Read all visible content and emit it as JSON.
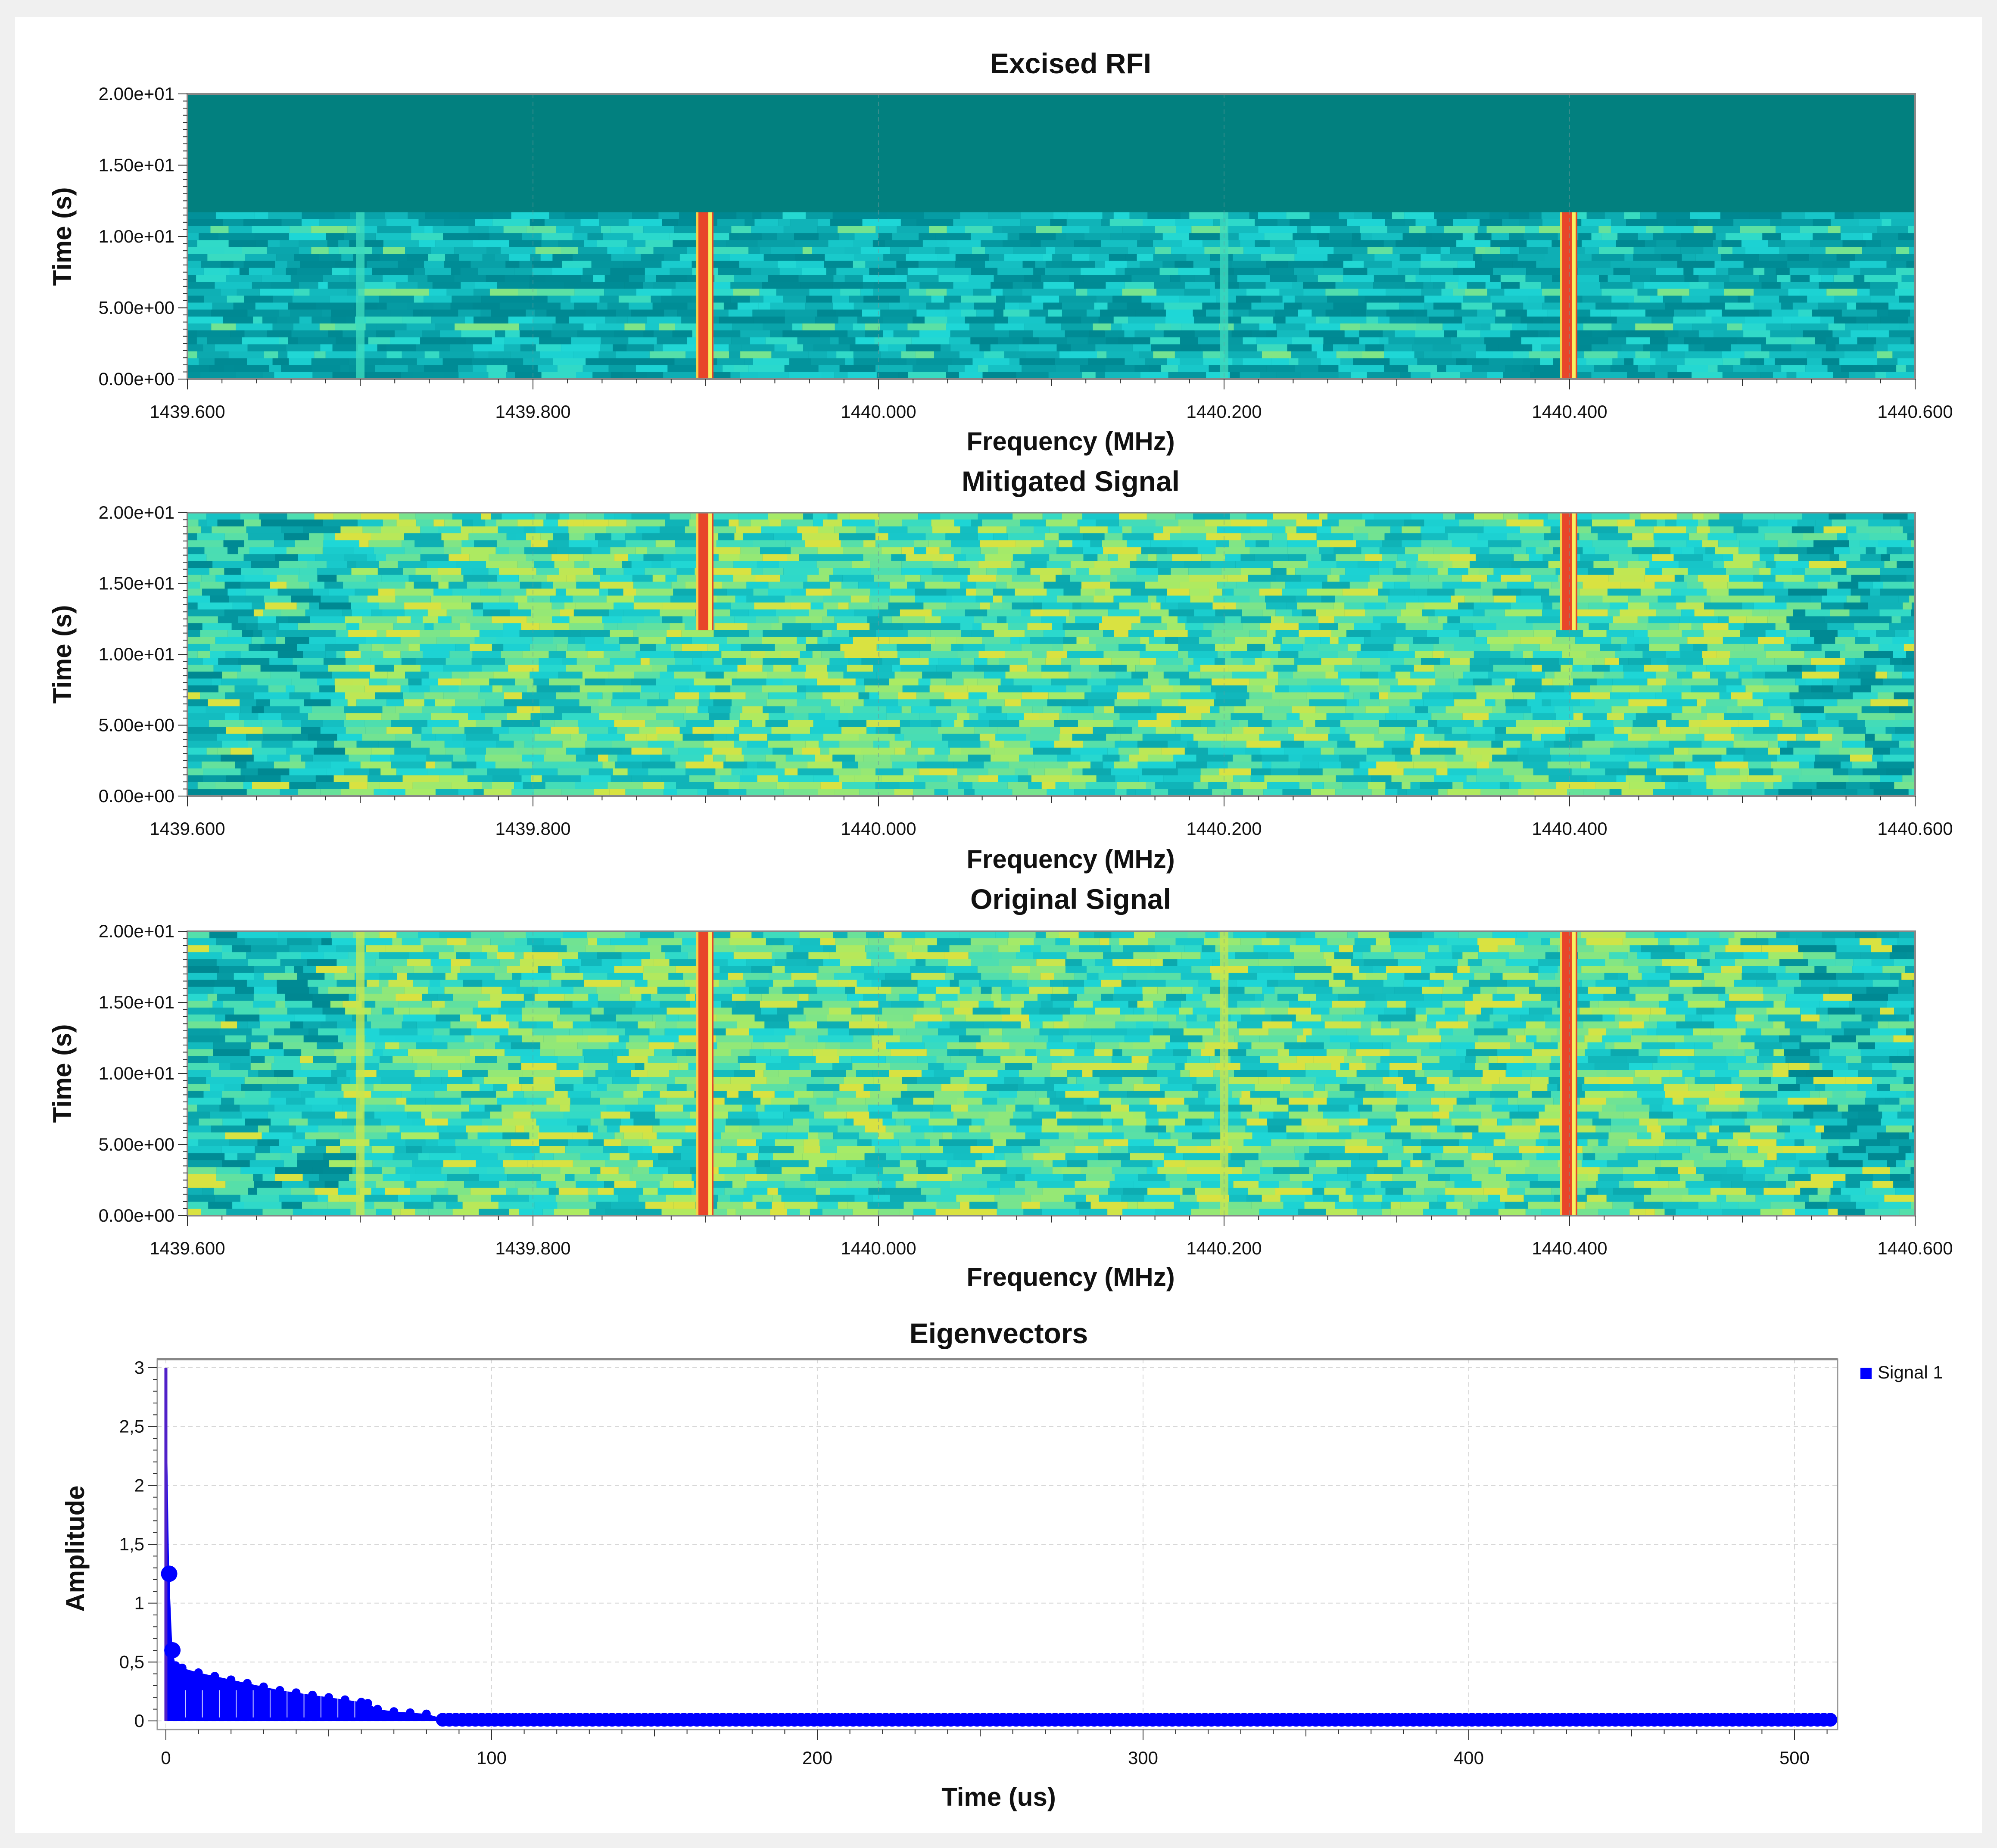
{
  "chart_data": [
    {
      "type": "heatmap",
      "title": "Excised RFI",
      "xlabel": "Frequency (MHz)",
      "ylabel": "Time (s)",
      "xlim": [
        1439.6,
        1440.6
      ],
      "ylim": [
        0,
        20
      ],
      "xticks": [
        "1439.600",
        "1439.800",
        "1440.000",
        "1440.200",
        "1440.400",
        "1440.600"
      ],
      "yticks": [
        "0.00e+00",
        "5.00e+00",
        "1.00e+01",
        "1.50e+01",
        "2.00e+01"
      ],
      "data_region": {
        "time_end": 11.7
      },
      "rfi_channels_mhz": [
        1439.7,
        1439.9,
        1440.2,
        1440.4
      ],
      "strong_rfi_channels_mhz": [
        1439.9,
        1440.4
      ],
      "grid": true
    },
    {
      "type": "heatmap",
      "title": "Mitigated Signal",
      "xlabel": "Frequency (MHz)",
      "ylabel": "Time (s)",
      "xlim": [
        1439.6,
        1440.6
      ],
      "ylim": [
        0,
        20
      ],
      "xticks": [
        "1439.600",
        "1439.800",
        "1440.000",
        "1440.200",
        "1440.400",
        "1440.600"
      ],
      "yticks": [
        "0.00e+00",
        "5.00e+00",
        "1.00e+01",
        "1.50e+01",
        "2.00e+01"
      ],
      "residual_rfi": [
        {
          "freq_mhz": 1439.9,
          "time_start": 11.7,
          "time_end": 20
        },
        {
          "freq_mhz": 1440.4,
          "time_start": 11.7,
          "time_end": 20
        }
      ],
      "grid": true
    },
    {
      "type": "heatmap",
      "title": "Original Signal",
      "xlabel": "Frequency (MHz)",
      "ylabel": "Time (s)",
      "xlim": [
        1439.6,
        1440.6
      ],
      "ylim": [
        0,
        20
      ],
      "xticks": [
        "1439.600",
        "1439.800",
        "1440.000",
        "1440.200",
        "1440.400",
        "1440.600"
      ],
      "yticks": [
        "0.00e+00",
        "5.00e+00",
        "1.00e+01",
        "1.50e+01",
        "2.00e+01"
      ],
      "rfi_channels_mhz": [
        1439.7,
        1439.9,
        1440.2,
        1440.4
      ],
      "strong_rfi_channels_mhz": [
        1439.9,
        1440.4
      ],
      "grid": true
    },
    {
      "type": "line",
      "title": "Eigenvectors",
      "xlabel": "Time (us)",
      "ylabel": "Amplitude",
      "xlim": [
        0,
        512
      ],
      "ylim": [
        0,
        3
      ],
      "xticks": [
        "0",
        "100",
        "200",
        "300",
        "400",
        "500"
      ],
      "yticks": [
        "0",
        "0,5",
        "1",
        "1,5",
        "2",
        "2,5",
        "3"
      ],
      "legend": "top-right",
      "grid": true,
      "series": [
        {
          "name": "Signal 1",
          "color": "#0000ff",
          "x": [
            0,
            1,
            2,
            3,
            5,
            10,
            15,
            20,
            25,
            30,
            35,
            40,
            45,
            50,
            55,
            60,
            62,
            65,
            70,
            75,
            80,
            85,
            100,
            150,
            200,
            250,
            300,
            350,
            400,
            450,
            500,
            511
          ],
          "values": [
            3.0,
            1.25,
            0.6,
            0.47,
            0.45,
            0.41,
            0.38,
            0.35,
            0.32,
            0.29,
            0.26,
            0.24,
            0.22,
            0.2,
            0.18,
            0.16,
            0.15,
            0.1,
            0.08,
            0.07,
            0.06,
            0.02,
            0.01,
            0.01,
            0.01,
            0.01,
            0.01,
            0.01,
            0.01,
            0.01,
            0.01,
            0.01
          ]
        }
      ]
    }
  ]
}
